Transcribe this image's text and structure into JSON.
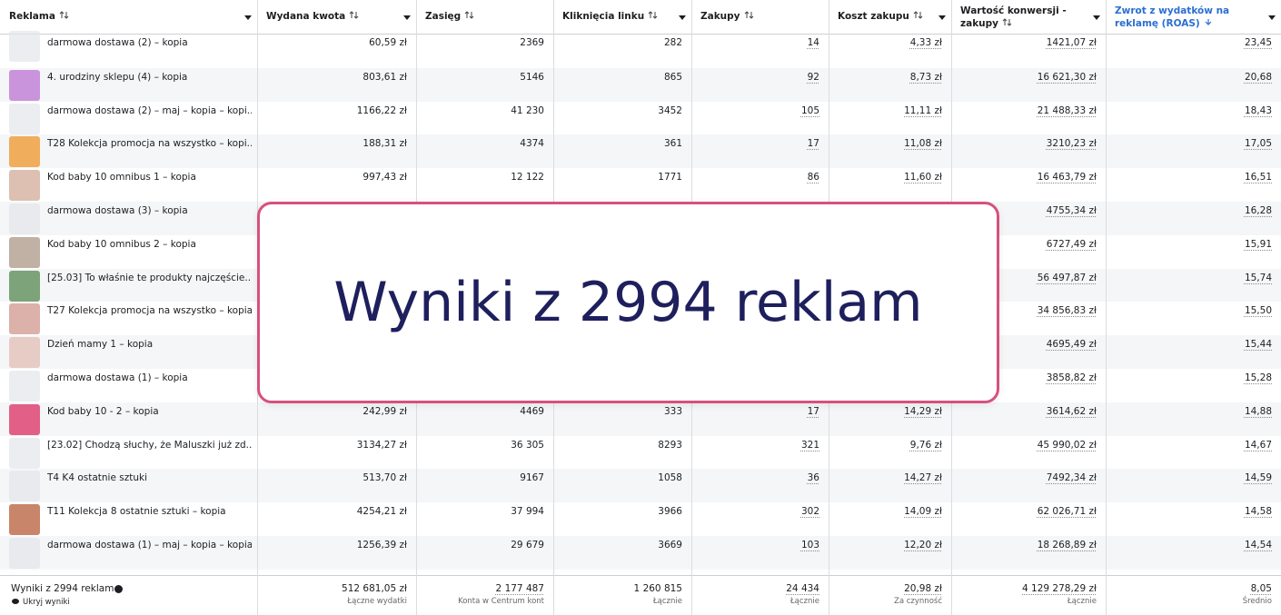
{
  "table": {
    "headers": [
      "Reklama",
      "Wydana kwota",
      "Zasięg",
      "Kliknięcia linku",
      "Zakupy",
      "Koszt zakupu",
      "Wartość konwersji - zakupy",
      "Zwrot z wydatków na reklamę (ROAS)"
    ],
    "rows": [
      [
        "darmowa dostawa (2) – kopia",
        "60,59 zł",
        "2369",
        "282",
        "14",
        "4,33 zł",
        "1421,07 zł",
        "23,45"
      ],
      [
        "4. urodziny sklepu (4) – kopia",
        "803,61 zł",
        "5146",
        "865",
        "92",
        "8,73 zł",
        "16 621,30 zł",
        "20,68"
      ],
      [
        "darmowa dostawa (2) – maj – kopia – kopi...",
        "1166,22 zł",
        "41 230",
        "3452",
        "105",
        "11,11 zł",
        "21 488,33 zł",
        "18,43"
      ],
      [
        "T28 Kolekcja promocja na wszystko – kopi...",
        "188,31 zł",
        "4374",
        "361",
        "17",
        "11,08 zł",
        "3210,23 zł",
        "17,05"
      ],
      [
        "Kod baby 10 omnibus 1 – kopia",
        "997,43 zł",
        "12 122",
        "1771",
        "86",
        "11,60 zł",
        "16 463,79 zł",
        "16,51"
      ],
      [
        "darmowa dostawa (3) – kopia",
        null,
        null,
        null,
        null,
        null,
        "4755,34 zł",
        "16,28"
      ],
      [
        "Kod baby 10 omnibus 2 – kopia",
        null,
        null,
        null,
        null,
        null,
        "6727,49 zł",
        "15,91"
      ],
      [
        "[25.03] To właśnie te produkty najczęście...",
        null,
        null,
        null,
        null,
        null,
        "56 497,87 zł",
        "15,74"
      ],
      [
        "T27 Kolekcja promocja na wszystko – kopia",
        null,
        null,
        null,
        null,
        null,
        "34 856,83 zł",
        "15,50"
      ],
      [
        "Dzień mamy 1 – kopia",
        null,
        null,
        null,
        null,
        null,
        "4695,49 zł",
        "15,44"
      ],
      [
        "darmowa dostawa (1) – kopia",
        null,
        null,
        null,
        null,
        null,
        "3858,82 zł",
        "15,28"
      ],
      [
        "Kod baby 10 - 2 – kopia",
        "242,99 zł",
        "4469",
        "333",
        "17",
        "14,29 zł",
        "3614,62 zł",
        "14,88"
      ],
      [
        "[23.02] Chodzą słuchy, że Maluszki już zd...",
        "3134,27 zł",
        "36 305",
        "8293",
        "321",
        "9,76 zł",
        "45 990,02 zł",
        "14,67"
      ],
      [
        "T4 K4 ostatnie sztuki",
        "513,70 zł",
        "9167",
        "1058",
        "36",
        "14,27 zł",
        "7492,34 zł",
        "14,59"
      ],
      [
        "T11 Kolekcja 8 ostatnie sztuki – kopia",
        "4254,21 zł",
        "37 994",
        "3966",
        "302",
        "14,09 zł",
        "62 026,71 zł",
        "14,58"
      ],
      [
        "darmowa dostawa (1) – maj – kopia – kopia...",
        "1256,39 zł",
        "29 679",
        "3669",
        "103",
        "12,20 zł",
        "18 268,89 zł",
        "14,54"
      ]
    ],
    "footer": {
      "title": "Wyniki z 2994 reklam",
      "link": "Ukryj wyniki",
      "totals": [
        {
          "value": "512 681,05 zł",
          "label": "Łączne wydatki"
        },
        {
          "value": "2 177 487",
          "label": "Konta w Centrum kont"
        },
        {
          "value": "1 260 815",
          "label": "Łącznie"
        },
        {
          "value": "24 434",
          "label": "Łącznie"
        },
        {
          "value": "20,98 zł",
          "label": "Za czynność"
        },
        {
          "value": "4 129 278,29 zł",
          "label": "Łącznie"
        },
        {
          "value": "8,05",
          "label": "Średnio"
        }
      ]
    }
  },
  "overlay": {
    "text": "Wyniki z 2994 reklam"
  }
}
